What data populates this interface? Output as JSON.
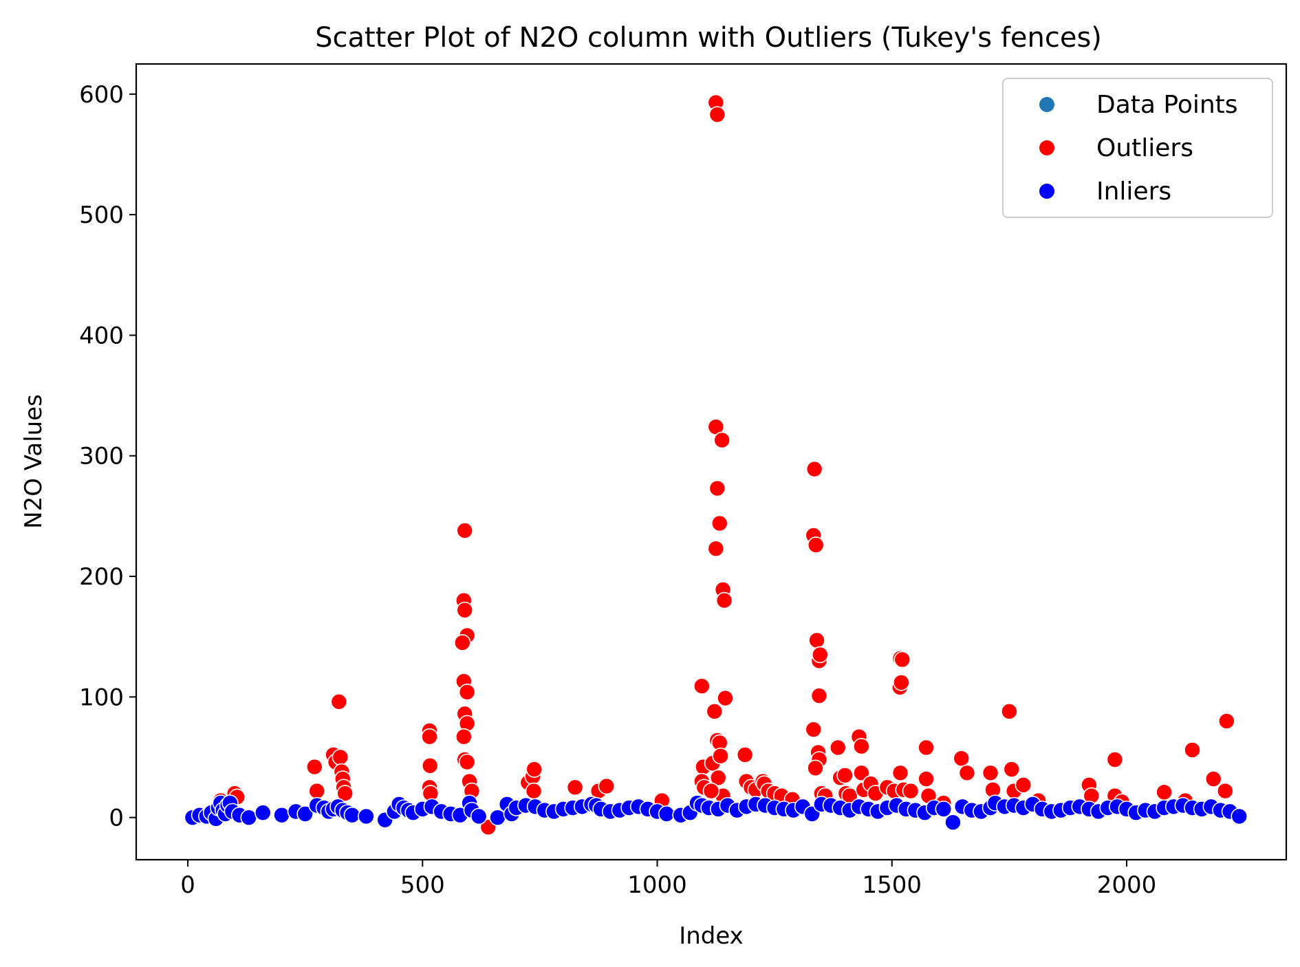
{
  "chart_data": {
    "type": "scatter",
    "title": "Scatter Plot of N2O column with Outliers (Tukey's fences)",
    "xlabel": "Index",
    "ylabel": "N2O Values",
    "xlim": [
      -110,
      2340
    ],
    "ylim": [
      -35,
      625
    ],
    "x_ticks": [
      0,
      500,
      1000,
      1500,
      2000
    ],
    "y_ticks": [
      0,
      100,
      200,
      300,
      400,
      500,
      600
    ],
    "grid": false,
    "legend_position": "top-right",
    "series": [
      {
        "name": "Data Points",
        "color": "#1f77b4",
        "points": []
      },
      {
        "name": "Outliers",
        "color": "#ff0000",
        "points": [
          [
            70,
            14
          ],
          [
            100,
            20
          ],
          [
            105,
            17
          ],
          [
            270,
            42
          ],
          [
            275,
            22
          ],
          [
            310,
            52
          ],
          [
            315,
            46
          ],
          [
            322,
            96
          ],
          [
            325,
            50
          ],
          [
            328,
            38
          ],
          [
            330,
            32
          ],
          [
            332,
            25
          ],
          [
            335,
            20
          ],
          [
            515,
            72
          ],
          [
            515,
            67
          ],
          [
            516,
            43
          ],
          [
            515,
            25
          ],
          [
            517,
            20
          ],
          [
            590,
            238
          ],
          [
            588,
            180
          ],
          [
            590,
            172
          ],
          [
            595,
            151
          ],
          [
            585,
            145
          ],
          [
            588,
            113
          ],
          [
            595,
            104
          ],
          [
            590,
            86
          ],
          [
            595,
            78
          ],
          [
            588,
            67
          ],
          [
            590,
            48
          ],
          [
            595,
            46
          ],
          [
            600,
            30
          ],
          [
            605,
            22
          ],
          [
            640,
            -8
          ],
          [
            725,
            29
          ],
          [
            735,
            34
          ],
          [
            738,
            40
          ],
          [
            737,
            22
          ],
          [
            825,
            25
          ],
          [
            875,
            22
          ],
          [
            892,
            26
          ],
          [
            1010,
            14
          ],
          [
            1095,
            109
          ],
          [
            1098,
            42
          ],
          [
            1095,
            30
          ],
          [
            1100,
            25
          ],
          [
            1118,
            45
          ],
          [
            1125,
            593
          ],
          [
            1128,
            583
          ],
          [
            1125,
            324
          ],
          [
            1128,
            273
          ],
          [
            1125,
            223
          ],
          [
            1133,
            244
          ],
          [
            1138,
            313
          ],
          [
            1140,
            189
          ],
          [
            1143,
            180
          ],
          [
            1145,
            99
          ],
          [
            1122,
            88
          ],
          [
            1128,
            64
          ],
          [
            1133,
            62
          ],
          [
            1135,
            51
          ],
          [
            1130,
            33
          ],
          [
            1140,
            18
          ],
          [
            1115,
            22
          ],
          [
            1187,
            52
          ],
          [
            1190,
            30
          ],
          [
            1200,
            25
          ],
          [
            1210,
            23
          ],
          [
            1225,
            30
          ],
          [
            1228,
            28
          ],
          [
            1237,
            22
          ],
          [
            1250,
            20
          ],
          [
            1265,
            18
          ],
          [
            1288,
            15
          ],
          [
            1335,
            289
          ],
          [
            1333,
            234
          ],
          [
            1338,
            226
          ],
          [
            1340,
            147
          ],
          [
            1345,
            130
          ],
          [
            1347,
            135
          ],
          [
            1345,
            101
          ],
          [
            1333,
            73
          ],
          [
            1343,
            54
          ],
          [
            1345,
            48
          ],
          [
            1337,
            41
          ],
          [
            1350,
            20
          ],
          [
            1358,
            18
          ],
          [
            1385,
            58
          ],
          [
            1390,
            33
          ],
          [
            1400,
            35
          ],
          [
            1402,
            20
          ],
          [
            1410,
            18
          ],
          [
            1430,
            67
          ],
          [
            1435,
            59
          ],
          [
            1435,
            37
          ],
          [
            1440,
            23
          ],
          [
            1455,
            28
          ],
          [
            1465,
            20
          ],
          [
            1490,
            25
          ],
          [
            1505,
            22
          ],
          [
            1518,
            132
          ],
          [
            1517,
            108
          ],
          [
            1520,
            112
          ],
          [
            1522,
            131
          ],
          [
            1518,
            37
          ],
          [
            1525,
            23
          ],
          [
            1540,
            22
          ],
          [
            1573,
            58
          ],
          [
            1573,
            32
          ],
          [
            1578,
            18
          ],
          [
            1610,
            12
          ],
          [
            1648,
            49
          ],
          [
            1660,
            37
          ],
          [
            1710,
            37
          ],
          [
            1715,
            23
          ],
          [
            1750,
            88
          ],
          [
            1755,
            40
          ],
          [
            1760,
            22
          ],
          [
            1780,
            27
          ],
          [
            1812,
            14
          ],
          [
            1920,
            27
          ],
          [
            1925,
            18
          ],
          [
            1975,
            48
          ],
          [
            1975,
            18
          ],
          [
            1990,
            13
          ],
          [
            2080,
            21
          ],
          [
            2125,
            14
          ],
          [
            2140,
            56
          ],
          [
            2185,
            32
          ],
          [
            2213,
            80
          ],
          [
            2210,
            22
          ]
        ]
      },
      {
        "name": "Inliers",
        "color": "#0000ff",
        "points": [
          [
            10,
            0
          ],
          [
            25,
            2
          ],
          [
            40,
            1
          ],
          [
            50,
            4
          ],
          [
            60,
            -1
          ],
          [
            65,
            8
          ],
          [
            70,
            12
          ],
          [
            75,
            6
          ],
          [
            80,
            3
          ],
          [
            85,
            10
          ],
          [
            90,
            12
          ],
          [
            95,
            5
          ],
          [
            110,
            2
          ],
          [
            130,
            0
          ],
          [
            160,
            4
          ],
          [
            200,
            2
          ],
          [
            230,
            5
          ],
          [
            250,
            3
          ],
          [
            275,
            10
          ],
          [
            290,
            8
          ],
          [
            300,
            5
          ],
          [
            310,
            7
          ],
          [
            320,
            9
          ],
          [
            330,
            6
          ],
          [
            340,
            4
          ],
          [
            350,
            2
          ],
          [
            380,
            1
          ],
          [
            420,
            -2
          ],
          [
            440,
            5
          ],
          [
            450,
            11
          ],
          [
            460,
            8
          ],
          [
            470,
            6
          ],
          [
            480,
            4
          ],
          [
            500,
            7
          ],
          [
            520,
            9
          ],
          [
            540,
            5
          ],
          [
            560,
            3
          ],
          [
            580,
            2
          ],
          [
            600,
            12
          ],
          [
            605,
            6
          ],
          [
            620,
            1
          ],
          [
            660,
            0
          ],
          [
            680,
            11
          ],
          [
            690,
            3
          ],
          [
            700,
            8
          ],
          [
            720,
            10
          ],
          [
            740,
            9
          ],
          [
            760,
            6
          ],
          [
            780,
            5
          ],
          [
            800,
            7
          ],
          [
            820,
            8
          ],
          [
            840,
            9
          ],
          [
            860,
            11
          ],
          [
            870,
            10
          ],
          [
            880,
            7
          ],
          [
            900,
            5
          ],
          [
            920,
            6
          ],
          [
            940,
            8
          ],
          [
            960,
            9
          ],
          [
            980,
            7
          ],
          [
            1000,
            5
          ],
          [
            1020,
            3
          ],
          [
            1050,
            2
          ],
          [
            1070,
            4
          ],
          [
            1085,
            12
          ],
          [
            1095,
            10
          ],
          [
            1110,
            8
          ],
          [
            1130,
            7
          ],
          [
            1150,
            10
          ],
          [
            1170,
            6
          ],
          [
            1190,
            9
          ],
          [
            1210,
            11
          ],
          [
            1230,
            10
          ],
          [
            1250,
            8
          ],
          [
            1270,
            7
          ],
          [
            1290,
            6
          ],
          [
            1310,
            9
          ],
          [
            1330,
            3
          ],
          [
            1350,
            11
          ],
          [
            1370,
            10
          ],
          [
            1390,
            8
          ],
          [
            1410,
            6
          ],
          [
            1430,
            9
          ],
          [
            1450,
            7
          ],
          [
            1470,
            5
          ],
          [
            1490,
            8
          ],
          [
            1510,
            10
          ],
          [
            1530,
            7
          ],
          [
            1550,
            6
          ],
          [
            1570,
            4
          ],
          [
            1590,
            8
          ],
          [
            1610,
            7
          ],
          [
            1630,
            -4
          ],
          [
            1650,
            9
          ],
          [
            1670,
            6
          ],
          [
            1690,
            5
          ],
          [
            1710,
            8
          ],
          [
            1720,
            12
          ],
          [
            1740,
            9
          ],
          [
            1760,
            10
          ],
          [
            1780,
            8
          ],
          [
            1800,
            11
          ],
          [
            1820,
            7
          ],
          [
            1840,
            5
          ],
          [
            1860,
            6
          ],
          [
            1880,
            8
          ],
          [
            1900,
            9
          ],
          [
            1920,
            7
          ],
          [
            1940,
            5
          ],
          [
            1960,
            8
          ],
          [
            1980,
            9
          ],
          [
            2000,
            7
          ],
          [
            2020,
            4
          ],
          [
            2040,
            6
          ],
          [
            2060,
            5
          ],
          [
            2080,
            8
          ],
          [
            2100,
            9
          ],
          [
            2120,
            10
          ],
          [
            2140,
            8
          ],
          [
            2160,
            7
          ],
          [
            2180,
            9
          ],
          [
            2200,
            6
          ],
          [
            2220,
            5
          ],
          [
            2240,
            1
          ]
        ]
      }
    ]
  }
}
